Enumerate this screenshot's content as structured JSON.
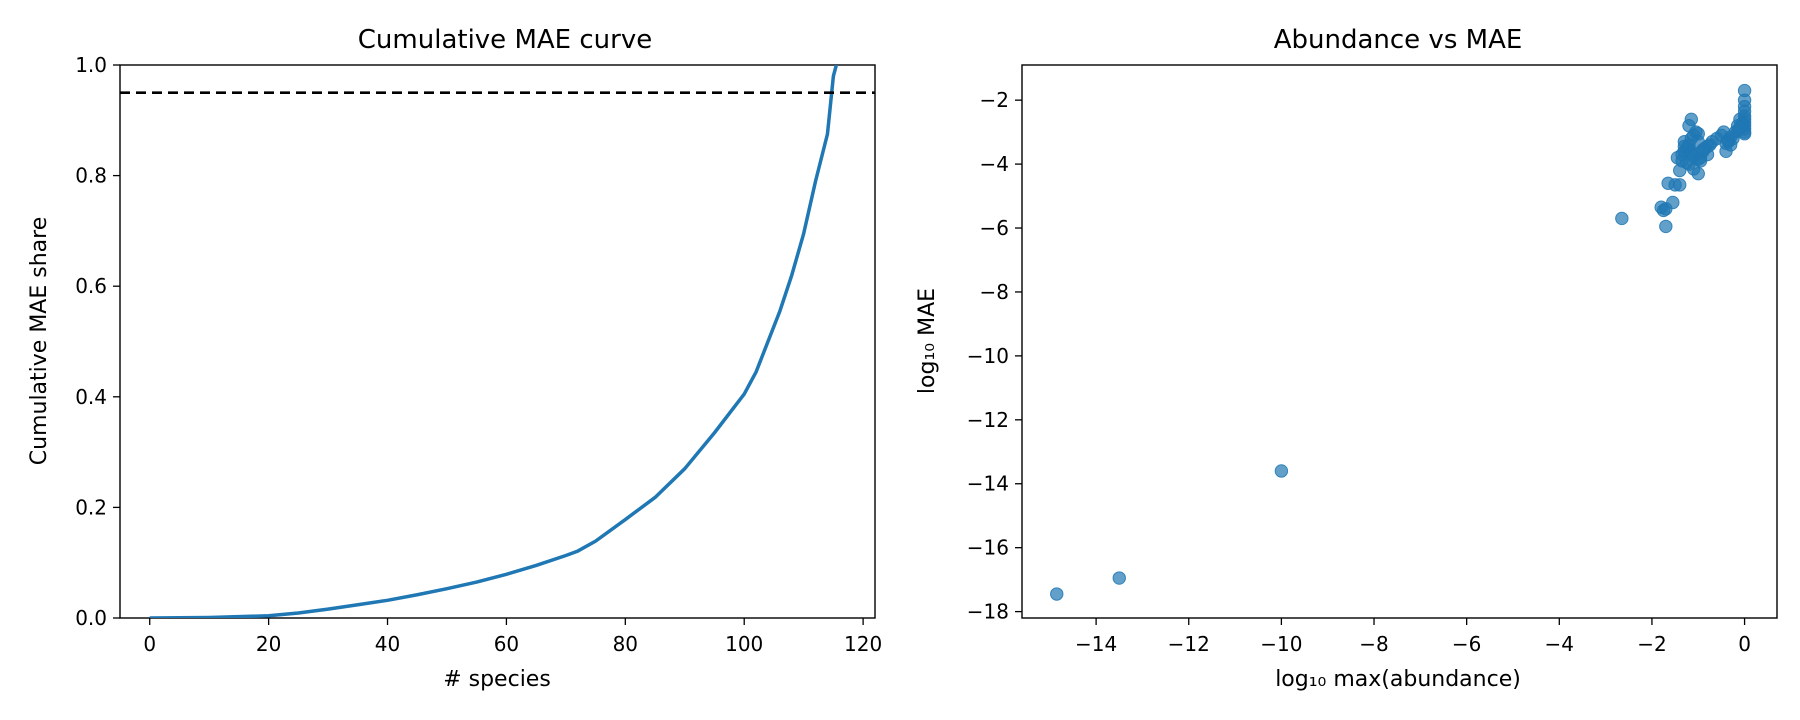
{
  "chart_data": [
    {
      "type": "line",
      "title": "Cumulative MAE curve",
      "xlabel": "# species",
      "ylabel": "Cumulative MAE share",
      "xlim": [
        -5,
        122
      ],
      "ylim": [
        0,
        1
      ],
      "xticks": [
        0,
        20,
        40,
        60,
        80,
        100,
        120
      ],
      "yticks": [
        0.0,
        0.2,
        0.4,
        0.6,
        0.8,
        1.0
      ],
      "ytick_labels": [
        "0.0",
        "0.2",
        "0.4",
        "0.6",
        "0.8",
        "1.0"
      ],
      "grid": false,
      "colors": {
        "line": "#1f77b4",
        "reference": "#000000"
      },
      "reference_line": {
        "y": 0.95,
        "style": "dashed"
      },
      "series": [
        {
          "x": [
            0,
            10,
            20,
            25,
            30,
            35,
            40,
            45,
            50,
            55,
            60,
            65,
            70,
            72,
            75,
            80,
            85,
            90,
            95,
            100,
            102,
            104,
            106,
            108,
            110,
            112,
            114,
            115,
            116
          ],
          "y": [
            0.0,
            0.001,
            0.004,
            0.009,
            0.016,
            0.024,
            0.032,
            0.042,
            0.053,
            0.065,
            0.079,
            0.095,
            0.113,
            0.121,
            0.139,
            0.178,
            0.218,
            0.27,
            0.335,
            0.405,
            0.445,
            0.5,
            0.555,
            0.62,
            0.695,
            0.79,
            0.875,
            0.98,
            1.02
          ]
        }
      ]
    },
    {
      "type": "scatter",
      "title": "Abundance vs MAE",
      "xlabel": "log₁₀ max(abundance)",
      "ylabel": "log₁₀ MAE",
      "xlim": [
        -15.6,
        0.7
      ],
      "ylim": [
        -18.2,
        -0.9
      ],
      "xticks": [
        -14,
        -12,
        -10,
        -8,
        -6,
        -4,
        -2,
        0
      ],
      "yticks": [
        -18,
        -16,
        -14,
        -12,
        -10,
        -8,
        -6,
        -4,
        -2
      ],
      "grid": false,
      "colors": {
        "marker": "#1f77b4"
      },
      "marker_alpha": 0.7,
      "points": {
        "x": [
          -14.85,
          -13.5,
          -10.0,
          -2.65,
          -1.8,
          -1.75,
          -1.7,
          -1.65,
          -1.55,
          -1.7,
          -1.5,
          -1.4,
          -1.45,
          -1.35,
          -1.4,
          -1.3,
          -1.25,
          -1.2,
          -1.3,
          -1.15,
          -1.1,
          -1.0,
          -1.2,
          -1.05,
          -0.95,
          -1.1,
          -1.0,
          -0.9,
          -1.3,
          -1.2,
          -1.15,
          -1.05,
          -1.0,
          -0.95,
          -0.85,
          -0.8,
          -0.75,
          -0.7,
          -0.6,
          -0.5,
          -0.45,
          -0.4,
          -0.35,
          -0.3,
          -0.25,
          -0.2,
          -0.15,
          -0.1,
          -0.3,
          -0.35,
          -0.4,
          -0.8,
          -0.9,
          -1.35,
          -1.25,
          -1.2,
          -1.15,
          -1.1,
          -1.0,
          0.0,
          0.0,
          0.0,
          0.0,
          0.0,
          0.0,
          0.0,
          0.0,
          0.0,
          0.0,
          0.0,
          -0.05,
          -0.1,
          -0.15
        ],
        "y": [
          -17.45,
          -16.95,
          -13.6,
          -5.7,
          -5.35,
          -5.45,
          -5.95,
          -4.6,
          -5.2,
          -5.4,
          -4.65,
          -4.65,
          -3.8,
          -3.7,
          -4.2,
          -3.6,
          -3.5,
          -3.4,
          -3.3,
          -3.2,
          -3.1,
          -3.05,
          -3.55,
          -3.7,
          -3.8,
          -4.15,
          -4.3,
          -3.6,
          -3.45,
          -2.8,
          -2.6,
          -3.0,
          -3.3,
          -3.9,
          -3.5,
          -3.7,
          -3.4,
          -3.3,
          -3.2,
          -3.1,
          -3.0,
          -3.6,
          -3.3,
          -3.4,
          -3.2,
          -3.0,
          -2.8,
          -2.6,
          -3.15,
          -3.25,
          -3.35,
          -3.45,
          -3.55,
          -3.9,
          -3.95,
          -4.0,
          -3.65,
          -3.75,
          -3.85,
          -1.7,
          -2.0,
          -2.2,
          -2.35,
          -2.5,
          -2.6,
          -2.7,
          -2.8,
          -2.9,
          -3.0,
          -3.05,
          -2.75,
          -2.85,
          -2.95
        ]
      }
    }
  ]
}
